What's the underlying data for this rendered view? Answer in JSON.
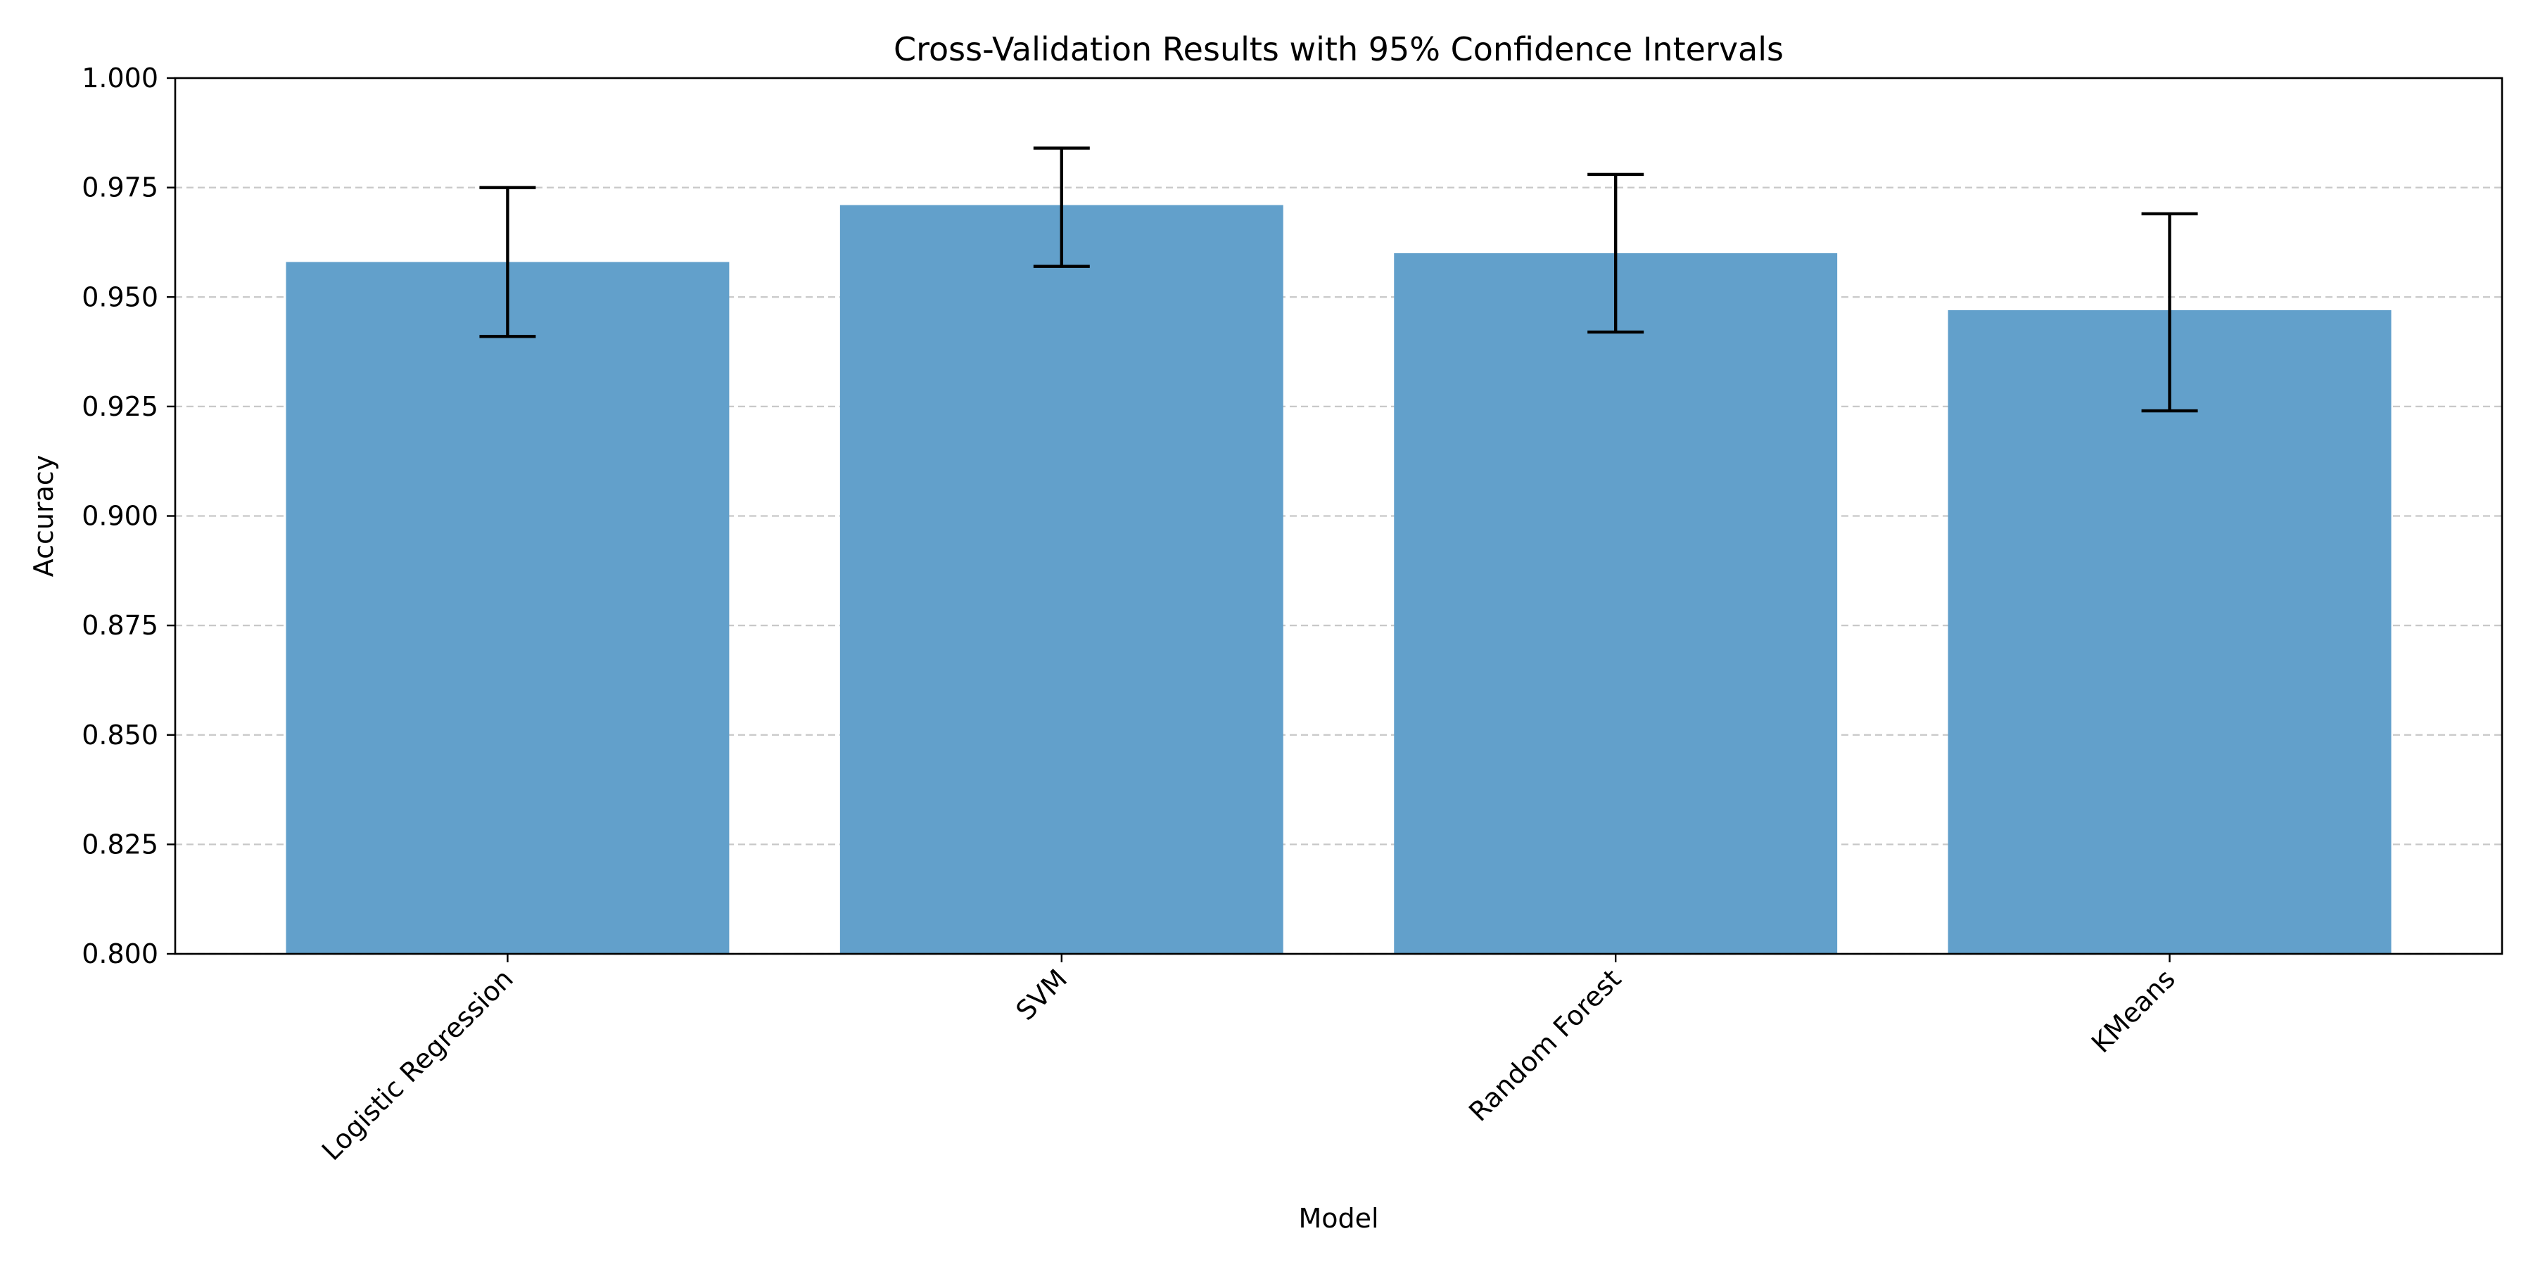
{
  "chart_data": {
    "type": "bar",
    "title": "Cross-Validation Results with 95% Confidence Intervals",
    "xlabel": "Model",
    "ylabel": "Accuracy",
    "categories": [
      "Logistic Regression",
      "SVM",
      "Random Forest",
      "KMeans"
    ],
    "values": [
      0.958,
      0.971,
      0.96,
      0.947
    ],
    "error_low": [
      0.941,
      0.957,
      0.942,
      0.924
    ],
    "error_high": [
      0.975,
      0.984,
      0.978,
      0.969
    ],
    "ylim": [
      0.8,
      1.0
    ],
    "yticks": [
      "0.800",
      "0.825",
      "0.850",
      "0.875",
      "0.900",
      "0.925",
      "0.950",
      "0.975",
      "1.000"
    ],
    "ytick_values": [
      0.8,
      0.825,
      0.85,
      0.875,
      0.9,
      0.925,
      0.95,
      0.975,
      1.0
    ],
    "grid": "y-dashed",
    "bar_color": "#62a0cb",
    "error_color": "#000000",
    "grid_color": "#c8c8c8",
    "xtick_rotation_deg": 45
  }
}
